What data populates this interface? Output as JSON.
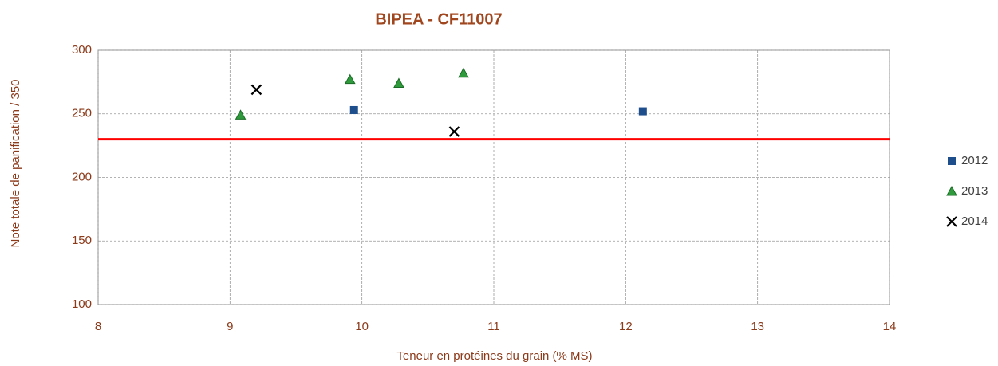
{
  "chart_data": {
    "type": "scatter",
    "title": "BIPEA - CF11007",
    "x_label": "Teneur en protéines du grain (% MS)",
    "y_label": "Note totale de panification / 350",
    "xlim": [
      8,
      14
    ],
    "xticks": [
      8,
      9,
      10,
      11,
      12,
      13,
      14
    ],
    "ylim": [
      100,
      300
    ],
    "yticks": [
      100,
      150,
      200,
      250,
      300
    ],
    "grid": true,
    "legend": "right",
    "reference_line": {
      "value": 230,
      "color": "#ff0000"
    },
    "series": [
      {
        "name": "2012",
        "color": "#1f4e8c",
        "marker": "square",
        "x": [
          9.94,
          12.13
        ],
        "y": [
          253,
          252
        ]
      },
      {
        "name": "2013",
        "color": "#2e9a3c",
        "marker": "triangle",
        "x": [
          9.08,
          9.91,
          10.28,
          10.77
        ],
        "y": [
          249,
          277,
          274,
          282
        ]
      },
      {
        "name": "2014",
        "color": "#000000",
        "marker": "cross",
        "x": [
          9.2,
          10.7
        ],
        "y": [
          269,
          236
        ]
      }
    ]
  }
}
